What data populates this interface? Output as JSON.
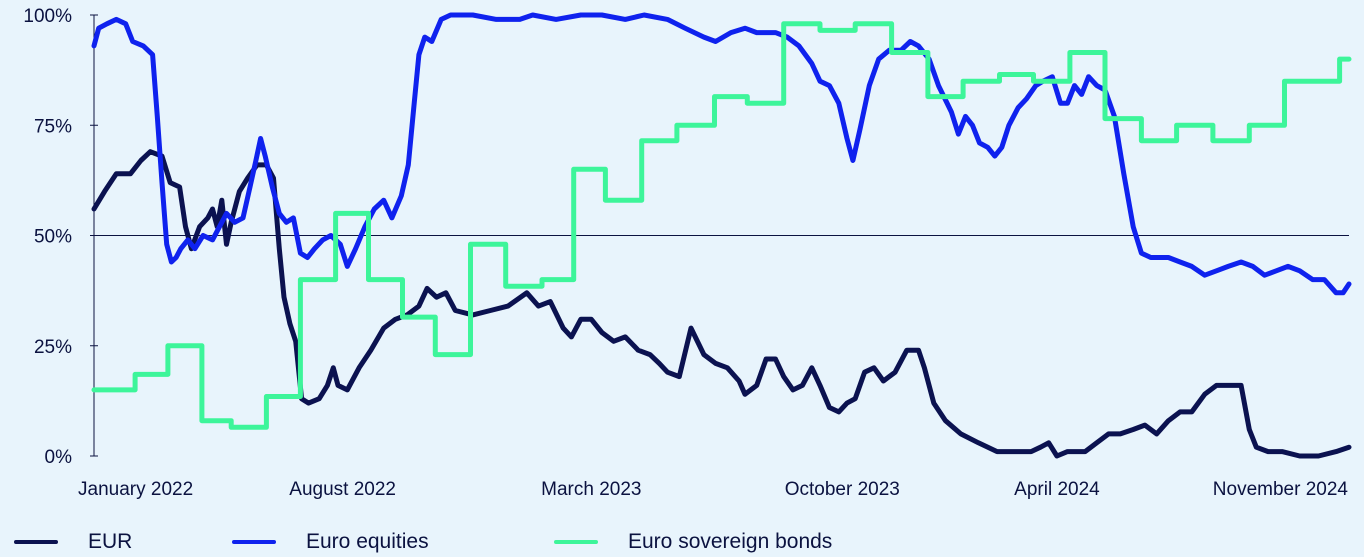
{
  "chart_data": {
    "type": "line",
    "title": "",
    "xlabel": "",
    "ylabel": "",
    "ylim": [
      0,
      100
    ],
    "y_ticks": [
      "0%",
      "25%",
      "50%",
      "75%",
      "100%"
    ],
    "x_ticks": [
      "January 2022",
      "August 2022",
      "March 2023",
      "October 2023",
      "April 2024",
      "November 2024"
    ],
    "x_tick_dates": [
      "2022-01-01",
      "2022-08-01",
      "2023-03-01",
      "2023-10-01",
      "2024-04-01",
      "2024-11-01"
    ],
    "reference_line": 50,
    "grid": false,
    "legend_position": "bottom",
    "series": [
      {
        "name": "EUR",
        "color": "#0b1250",
        "style": "line",
        "points": [
          [
            "2022-01-01",
            56
          ],
          [
            "2022-01-10",
            60
          ],
          [
            "2022-01-20",
            64
          ],
          [
            "2022-02-01",
            64
          ],
          [
            "2022-02-10",
            67
          ],
          [
            "2022-02-18",
            69
          ],
          [
            "2022-02-28",
            68
          ],
          [
            "2022-03-07",
            62
          ],
          [
            "2022-03-15",
            61
          ],
          [
            "2022-03-20",
            52
          ],
          [
            "2022-03-25",
            47
          ],
          [
            "2022-04-01",
            52
          ],
          [
            "2022-04-08",
            54
          ],
          [
            "2022-04-12",
            56
          ],
          [
            "2022-04-16",
            52
          ],
          [
            "2022-04-20",
            58
          ],
          [
            "2022-04-24",
            48
          ],
          [
            "2022-04-28",
            53
          ],
          [
            "2022-05-05",
            60
          ],
          [
            "2022-05-12",
            63
          ],
          [
            "2022-05-20",
            66
          ],
          [
            "2022-05-28",
            66
          ],
          [
            "2022-06-03",
            63
          ],
          [
            "2022-06-08",
            47
          ],
          [
            "2022-06-12",
            36
          ],
          [
            "2022-06-17",
            30
          ],
          [
            "2022-06-22",
            26
          ],
          [
            "2022-06-27",
            13
          ],
          [
            "2022-07-03",
            12
          ],
          [
            "2022-07-12",
            13
          ],
          [
            "2022-07-19",
            16
          ],
          [
            "2022-07-24",
            20
          ],
          [
            "2022-07-28",
            16
          ],
          [
            "2022-08-05",
            15
          ],
          [
            "2022-08-15",
            20
          ],
          [
            "2022-08-25",
            24
          ],
          [
            "2022-09-05",
            29
          ],
          [
            "2022-09-15",
            31
          ],
          [
            "2022-09-25",
            32
          ],
          [
            "2022-10-05",
            34
          ],
          [
            "2022-10-12",
            38
          ],
          [
            "2022-10-20",
            36
          ],
          [
            "2022-10-28",
            37
          ],
          [
            "2022-11-05",
            33
          ],
          [
            "2022-11-20",
            32
          ],
          [
            "2022-12-05",
            33
          ],
          [
            "2022-12-20",
            34
          ],
          [
            "2023-01-05",
            37
          ],
          [
            "2023-01-15",
            34
          ],
          [
            "2023-01-25",
            35
          ],
          [
            "2023-02-05",
            29
          ],
          [
            "2023-02-12",
            27
          ],
          [
            "2023-02-20",
            31
          ],
          [
            "2023-03-01",
            31
          ],
          [
            "2023-03-10",
            28
          ],
          [
            "2023-03-20",
            26
          ],
          [
            "2023-03-30",
            27
          ],
          [
            "2023-04-10",
            24
          ],
          [
            "2023-04-20",
            23
          ],
          [
            "2023-04-28",
            21
          ],
          [
            "2023-05-05",
            19
          ],
          [
            "2023-05-15",
            18
          ],
          [
            "2023-05-25",
            29
          ],
          [
            "2023-06-05",
            23
          ],
          [
            "2023-06-15",
            21
          ],
          [
            "2023-06-25",
            20
          ],
          [
            "2023-07-05",
            17
          ],
          [
            "2023-07-10",
            14
          ],
          [
            "2023-07-20",
            16
          ],
          [
            "2023-07-28",
            22
          ],
          [
            "2023-08-05",
            22
          ],
          [
            "2023-08-12",
            18
          ],
          [
            "2023-08-20",
            15
          ],
          [
            "2023-08-28",
            16
          ],
          [
            "2023-09-05",
            20
          ],
          [
            "2023-09-12",
            16
          ],
          [
            "2023-09-20",
            11
          ],
          [
            "2023-09-28",
            10
          ],
          [
            "2023-10-05",
            12
          ],
          [
            "2023-10-12",
            13
          ],
          [
            "2023-10-20",
            19
          ],
          [
            "2023-10-28",
            20
          ],
          [
            "2023-11-05",
            17
          ],
          [
            "2023-11-15",
            19
          ],
          [
            "2023-11-25",
            24
          ],
          [
            "2023-12-05",
            24
          ],
          [
            "2023-12-10",
            20
          ],
          [
            "2023-12-18",
            12
          ],
          [
            "2023-12-28",
            8
          ],
          [
            "2024-01-10",
            5
          ],
          [
            "2024-01-25",
            3
          ],
          [
            "2024-02-10",
            1
          ],
          [
            "2024-02-25",
            1
          ],
          [
            "2024-03-10",
            1
          ],
          [
            "2024-03-18",
            2
          ],
          [
            "2024-03-25",
            3
          ],
          [
            "2024-04-01",
            0
          ],
          [
            "2024-04-10",
            1
          ],
          [
            "2024-04-25",
            1
          ],
          [
            "2024-05-05",
            3
          ],
          [
            "2024-05-15",
            5
          ],
          [
            "2024-05-25",
            5
          ],
          [
            "2024-06-05",
            6
          ],
          [
            "2024-06-15",
            7
          ],
          [
            "2024-06-25",
            5
          ],
          [
            "2024-07-05",
            8
          ],
          [
            "2024-07-15",
            10
          ],
          [
            "2024-07-25",
            10
          ],
          [
            "2024-08-05",
            14
          ],
          [
            "2024-08-15",
            16
          ],
          [
            "2024-08-25",
            16
          ],
          [
            "2024-09-05",
            16
          ],
          [
            "2024-09-12",
            6
          ],
          [
            "2024-09-18",
            2
          ],
          [
            "2024-09-28",
            1
          ],
          [
            "2024-10-10",
            1
          ],
          [
            "2024-10-25",
            0
          ],
          [
            "2024-11-10",
            0
          ],
          [
            "2024-11-25",
            1
          ],
          [
            "2024-12-06",
            2
          ]
        ]
      },
      {
        "name": "Euro equities",
        "color": "#0f22ee",
        "style": "line",
        "points": [
          [
            "2022-01-01",
            93
          ],
          [
            "2022-01-05",
            97
          ],
          [
            "2022-01-12",
            98
          ],
          [
            "2022-01-20",
            99
          ],
          [
            "2022-01-28",
            98
          ],
          [
            "2022-02-03",
            94
          ],
          [
            "2022-02-12",
            93
          ],
          [
            "2022-02-20",
            91
          ],
          [
            "2022-02-24",
            77
          ],
          [
            "2022-02-28",
            62
          ],
          [
            "2022-03-04",
            48
          ],
          [
            "2022-03-08",
            44
          ],
          [
            "2022-03-12",
            45
          ],
          [
            "2022-03-16",
            47
          ],
          [
            "2022-03-22",
            49
          ],
          [
            "2022-03-28",
            47
          ],
          [
            "2022-04-04",
            50
          ],
          [
            "2022-04-12",
            49
          ],
          [
            "2022-04-18",
            52
          ],
          [
            "2022-04-24",
            55
          ],
          [
            "2022-05-01",
            53
          ],
          [
            "2022-05-08",
            54
          ],
          [
            "2022-05-14",
            61
          ],
          [
            "2022-05-19",
            67
          ],
          [
            "2022-05-23",
            72
          ],
          [
            "2022-05-27",
            68
          ],
          [
            "2022-06-02",
            61
          ],
          [
            "2022-06-08",
            55
          ],
          [
            "2022-06-14",
            53
          ],
          [
            "2022-06-20",
            54
          ],
          [
            "2022-06-26",
            46
          ],
          [
            "2022-07-02",
            45
          ],
          [
            "2022-07-08",
            47
          ],
          [
            "2022-07-15",
            49
          ],
          [
            "2022-07-22",
            50
          ],
          [
            "2022-07-30",
            48
          ],
          [
            "2022-08-05",
            43
          ],
          [
            "2022-08-12",
            47
          ],
          [
            "2022-08-20",
            52
          ],
          [
            "2022-08-28",
            56
          ],
          [
            "2022-09-05",
            58
          ],
          [
            "2022-09-12",
            54
          ],
          [
            "2022-09-20",
            59
          ],
          [
            "2022-09-26",
            66
          ],
          [
            "2022-10-01",
            80
          ],
          [
            "2022-10-05",
            91
          ],
          [
            "2022-10-10",
            95
          ],
          [
            "2022-10-16",
            94
          ],
          [
            "2022-10-24",
            99
          ],
          [
            "2022-11-01",
            100
          ],
          [
            "2022-11-20",
            100
          ],
          [
            "2022-12-10",
            99
          ],
          [
            "2022-12-30",
            99
          ],
          [
            "2023-01-10",
            100
          ],
          [
            "2023-01-30",
            99
          ],
          [
            "2023-02-20",
            100
          ],
          [
            "2023-03-10",
            100
          ],
          [
            "2023-03-30",
            99
          ],
          [
            "2023-04-15",
            100
          ],
          [
            "2023-05-05",
            99
          ],
          [
            "2023-05-20",
            97
          ],
          [
            "2023-06-05",
            95
          ],
          [
            "2023-06-15",
            94
          ],
          [
            "2023-06-28",
            96
          ],
          [
            "2023-07-10",
            97
          ],
          [
            "2023-07-20",
            96
          ],
          [
            "2023-08-05",
            96
          ],
          [
            "2023-08-15",
            95
          ],
          [
            "2023-08-25",
            93
          ],
          [
            "2023-09-05",
            89
          ],
          [
            "2023-09-12",
            85
          ],
          [
            "2023-09-20",
            84
          ],
          [
            "2023-09-28",
            80
          ],
          [
            "2023-10-05",
            72
          ],
          [
            "2023-10-10",
            67
          ],
          [
            "2023-10-16",
            74
          ],
          [
            "2023-10-24",
            84
          ],
          [
            "2023-11-01",
            90
          ],
          [
            "2023-11-10",
            92
          ],
          [
            "2023-11-20",
            92
          ],
          [
            "2023-11-28",
            94
          ],
          [
            "2023-12-05",
            93
          ],
          [
            "2023-12-14",
            90
          ],
          [
            "2023-12-22",
            84
          ],
          [
            "2024-01-02",
            78
          ],
          [
            "2024-01-08",
            73
          ],
          [
            "2024-01-14",
            77
          ],
          [
            "2024-01-20",
            75
          ],
          [
            "2024-01-26",
            71
          ],
          [
            "2024-02-02",
            70
          ],
          [
            "2024-02-08",
            68
          ],
          [
            "2024-02-14",
            70
          ],
          [
            "2024-02-20",
            75
          ],
          [
            "2024-02-28",
            79
          ],
          [
            "2024-03-06",
            81
          ],
          [
            "2024-03-14",
            84
          ],
          [
            "2024-03-20",
            85
          ],
          [
            "2024-03-28",
            86
          ],
          [
            "2024-04-04",
            80
          ],
          [
            "2024-04-10",
            80
          ],
          [
            "2024-04-16",
            84
          ],
          [
            "2024-04-22",
            82
          ],
          [
            "2024-04-28",
            86
          ],
          [
            "2024-05-05",
            84
          ],
          [
            "2024-05-12",
            83
          ],
          [
            "2024-05-20",
            77
          ],
          [
            "2024-05-28",
            64
          ],
          [
            "2024-06-05",
            52
          ],
          [
            "2024-06-12",
            46
          ],
          [
            "2024-06-20",
            45
          ],
          [
            "2024-07-05",
            45
          ],
          [
            "2024-07-15",
            44
          ],
          [
            "2024-07-25",
            43
          ],
          [
            "2024-08-05",
            41
          ],
          [
            "2024-08-15",
            42
          ],
          [
            "2024-08-25",
            43
          ],
          [
            "2024-09-05",
            44
          ],
          [
            "2024-09-15",
            43
          ],
          [
            "2024-09-25",
            41
          ],
          [
            "2024-10-05",
            42
          ],
          [
            "2024-10-15",
            43
          ],
          [
            "2024-10-25",
            42
          ],
          [
            "2024-11-05",
            40
          ],
          [
            "2024-11-15",
            40
          ],
          [
            "2024-11-25",
            37
          ],
          [
            "2024-12-01",
            37
          ],
          [
            "2024-12-06",
            39
          ]
        ]
      },
      {
        "name": "Euro sovereign bonds",
        "color": "#3df59a",
        "style": "step",
        "points": [
          [
            "2022-01-01",
            15
          ],
          [
            "2022-02-05",
            18.5
          ],
          [
            "2022-03-05",
            25
          ],
          [
            "2022-04-03",
            8
          ],
          [
            "2022-04-28",
            6.5
          ],
          [
            "2022-05-28",
            13.5
          ],
          [
            "2022-06-26",
            40
          ],
          [
            "2022-07-26",
            55
          ],
          [
            "2022-08-23",
            40
          ],
          [
            "2022-09-21",
            31.5
          ],
          [
            "2022-10-19",
            23
          ],
          [
            "2022-11-18",
            48
          ],
          [
            "2022-12-18",
            38.5
          ],
          [
            "2023-01-18",
            40
          ],
          [
            "2023-02-14",
            65
          ],
          [
            "2023-03-13",
            58
          ],
          [
            "2023-04-13",
            71.5
          ],
          [
            "2023-05-13",
            75
          ],
          [
            "2023-06-14",
            81.5
          ],
          [
            "2023-07-12",
            80
          ],
          [
            "2023-08-12",
            98
          ],
          [
            "2023-09-12",
            96.5
          ],
          [
            "2023-10-12",
            98
          ],
          [
            "2023-11-12",
            91.5
          ],
          [
            "2023-12-13",
            81.5
          ],
          [
            "2024-01-12",
            85
          ],
          [
            "2024-02-12",
            86.5
          ],
          [
            "2024-03-12",
            85
          ],
          [
            "2024-04-12",
            91.5
          ],
          [
            "2024-05-12",
            76.5
          ],
          [
            "2024-06-12",
            71.5
          ],
          [
            "2024-07-12",
            75
          ],
          [
            "2024-08-12",
            71.5
          ],
          [
            "2024-09-12",
            75
          ],
          [
            "2024-10-12",
            85
          ],
          [
            "2024-11-12",
            85
          ],
          [
            "2024-11-28",
            90
          ],
          [
            "2024-12-06",
            90
          ]
        ]
      }
    ]
  }
}
